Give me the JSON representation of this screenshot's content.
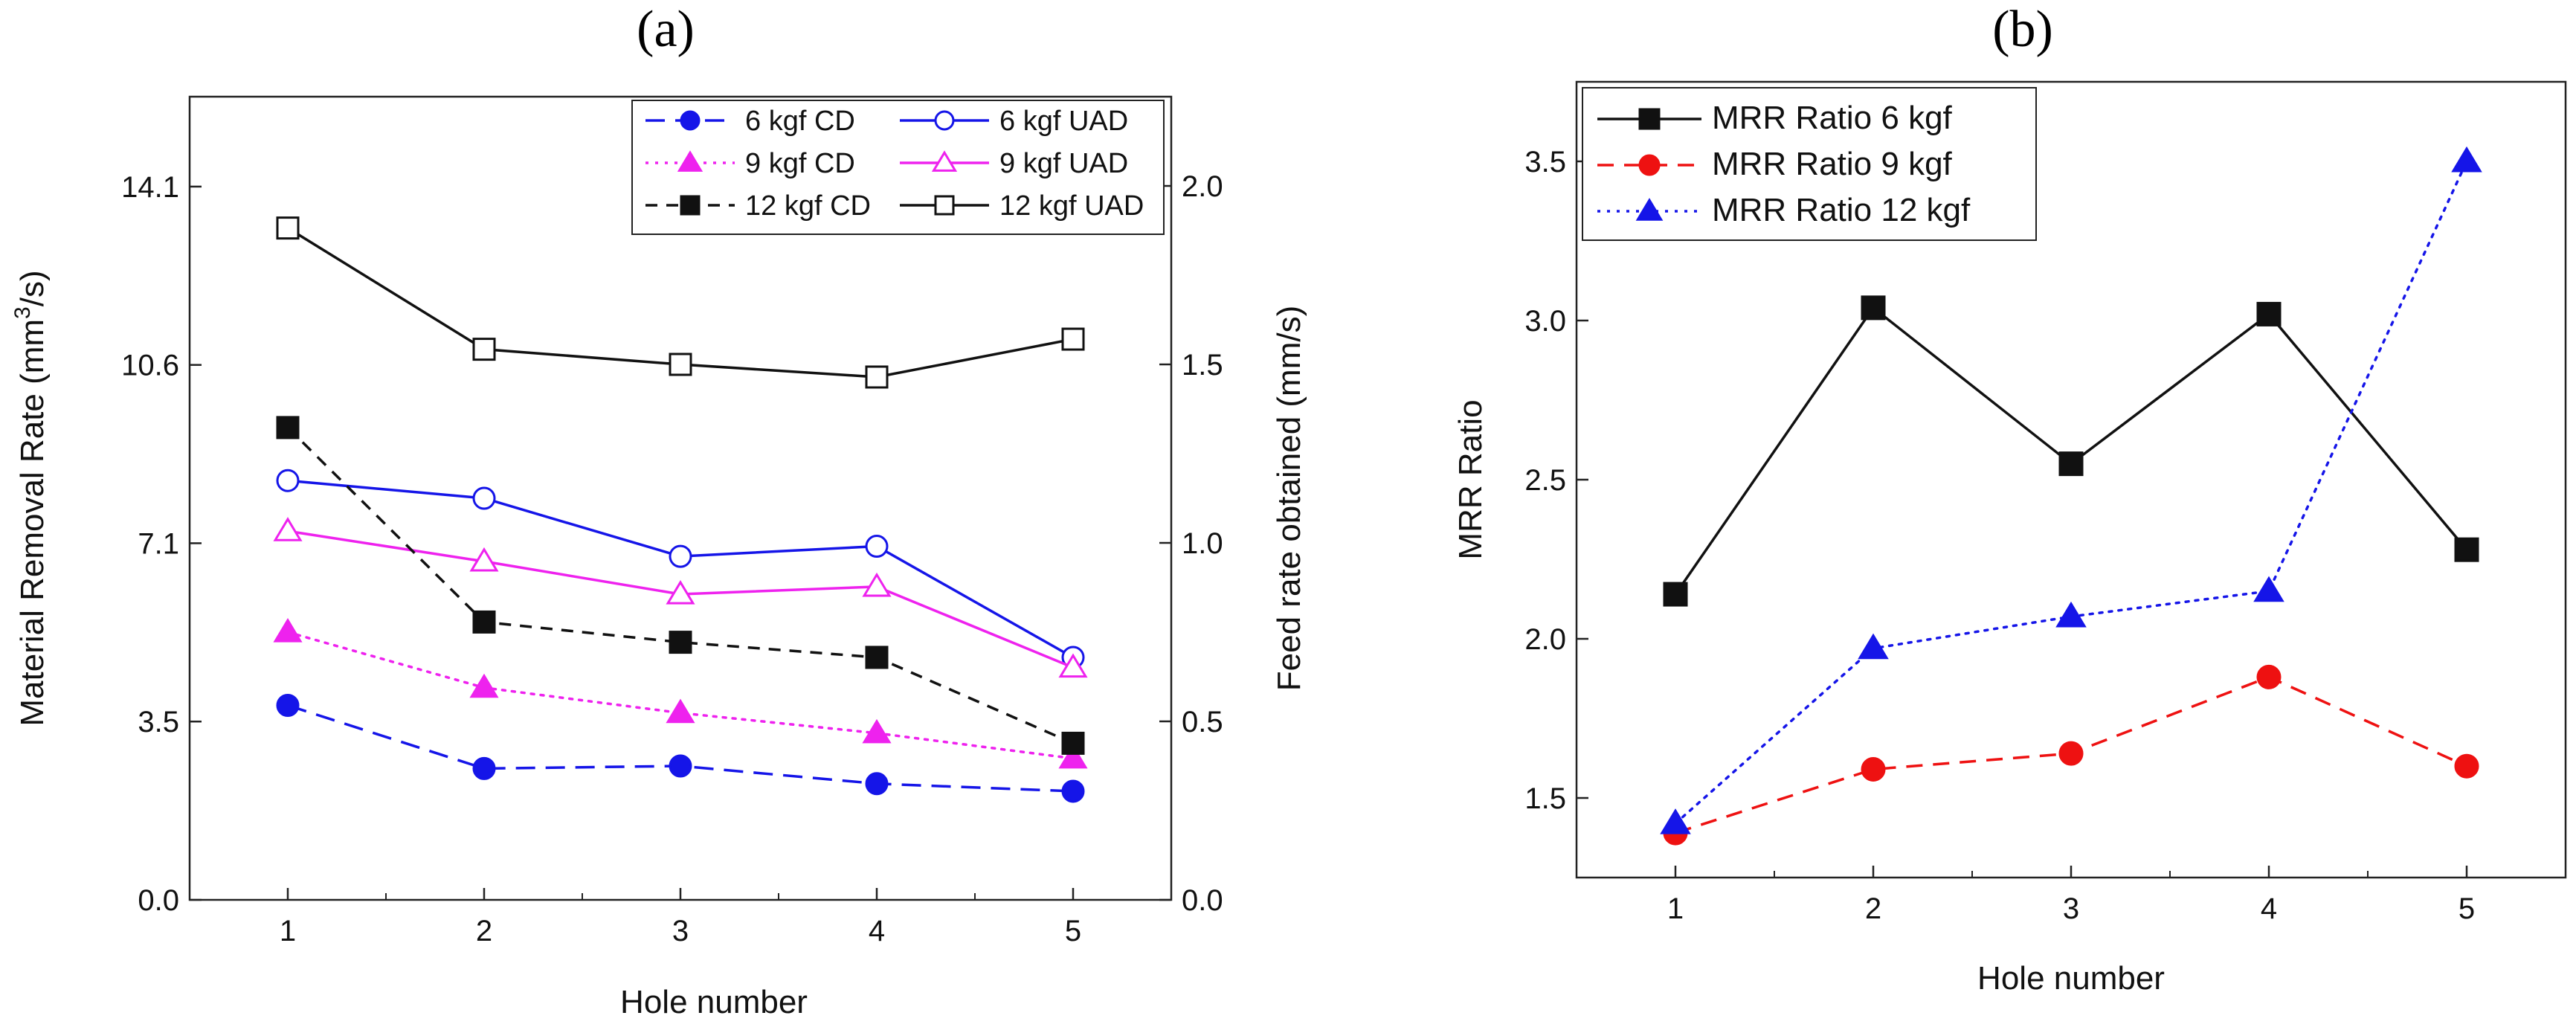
{
  "chart_data": [
    {
      "panel_label": "(a)",
      "type": "line",
      "xlabel": "Hole number",
      "ylabel": "Material Removal Rate (mm³/s)",
      "ylabel_parts": [
        "Material Removal Rate (mm",
        "3",
        "/s)"
      ],
      "y2label": "Feed rate obtained (mm/s)",
      "x": [
        1,
        2,
        3,
        4,
        5
      ],
      "xticks": [
        "1",
        "2",
        "3",
        "4",
        "5"
      ],
      "xlim": [
        0.5,
        5.5
      ],
      "ylim": [
        0,
        15.9
      ],
      "yticks": [
        "0.0",
        "3.5",
        "7.1",
        "10.6",
        "14.1"
      ],
      "ytick_values": [
        0,
        3.53,
        7.06,
        10.59,
        14.12
      ],
      "y2lim": [
        0,
        2.25
      ],
      "y2ticks": [
        "0.0",
        "0.5",
        "1.0",
        "1.5",
        "2.0"
      ],
      "y2tick_values": [
        0,
        0.5,
        1.0,
        1.5,
        2.0
      ],
      "legend_position": "top-right",
      "series": [
        {
          "name": "6 kgf CD",
          "color": "#1515e8",
          "dash": "long-dash",
          "marker": "circle",
          "filled": true,
          "values": [
            3.85,
            2.6,
            2.65,
            2.3,
            2.15
          ]
        },
        {
          "name": "6 kgf UAD",
          "color": "#1515e8",
          "dash": "solid",
          "marker": "circle",
          "filled": false,
          "values": [
            8.3,
            7.95,
            6.8,
            7.0,
            4.8
          ]
        },
        {
          "name": "9 kgf CD",
          "color": "#ee22ee",
          "dash": "dot",
          "marker": "triangle",
          "filled": true,
          "values": [
            5.3,
            4.2,
            3.7,
            3.3,
            2.8
          ]
        },
        {
          "name": "9 kgf UAD",
          "color": "#ee22ee",
          "dash": "solid",
          "marker": "triangle",
          "filled": false,
          "values": [
            7.3,
            6.7,
            6.05,
            6.2,
            4.6
          ]
        },
        {
          "name": "12 kgf CD",
          "color": "#111111",
          "dash": "short-dash",
          "marker": "square",
          "filled": true,
          "values": [
            9.35,
            5.5,
            5.1,
            4.8,
            3.1
          ]
        },
        {
          "name": "12 kgf UAD",
          "color": "#111111",
          "dash": "solid",
          "marker": "square",
          "filled": false,
          "values": [
            13.3,
            10.9,
            10.6,
            10.35,
            11.1
          ]
        }
      ]
    },
    {
      "panel_label": "(b)",
      "type": "line",
      "xlabel": "Hole number",
      "ylabel": "MRR Ratio",
      "x": [
        1,
        2,
        3,
        4,
        5
      ],
      "xticks": [
        "1",
        "2",
        "3",
        "4",
        "5"
      ],
      "xlim": [
        0.5,
        5.5
      ],
      "ylim": [
        1.25,
        3.75
      ],
      "yticks": [
        "1.5",
        "2.0",
        "2.5",
        "3.0",
        "3.5"
      ],
      "ytick_values": [
        1.5,
        2.0,
        2.5,
        3.0,
        3.5
      ],
      "legend_position": "top-left",
      "series": [
        {
          "name": "MRR Ratio 6 kgf",
          "color": "#111111",
          "dash": "solid",
          "marker": "square",
          "filled": true,
          "values": [
            2.14,
            3.04,
            2.55,
            3.02,
            2.28
          ]
        },
        {
          "name": "MRR Ratio 9 kgf",
          "color": "#ee1111",
          "dash": "dash",
          "marker": "circle",
          "filled": true,
          "values": [
            1.39,
            1.59,
            1.64,
            1.88,
            1.6
          ]
        },
        {
          "name": "MRR Ratio 12 kgf",
          "color": "#1515e8",
          "dash": "dot",
          "marker": "triangle",
          "filled": true,
          "values": [
            1.42,
            1.97,
            2.07,
            2.15,
            3.5
          ]
        }
      ]
    }
  ]
}
